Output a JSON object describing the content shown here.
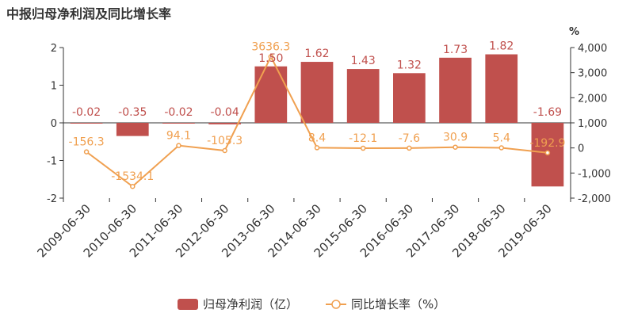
{
  "chart_data": {
    "type": "bar",
    "title": "中报归母净利润及同比增长率",
    "categories": [
      "2009-06-30",
      "2010-06-30",
      "2011-06-30",
      "2012-06-30",
      "2013-06-30",
      "2014-06-30",
      "2015-06-30",
      "2016-06-30",
      "2017-06-30",
      "2018-06-30",
      "2019-06-30"
    ],
    "series": [
      {
        "name": "归母净利润（亿）",
        "type": "bar",
        "axis": "left",
        "values": [
          -0.02,
          -0.35,
          -0.02,
          -0.04,
          1.5,
          1.62,
          1.43,
          1.32,
          1.73,
          1.82,
          -1.69
        ],
        "labels": [
          "-0.02",
          "-0.35",
          "-0.02",
          "-0.04",
          "1.50",
          "1.62",
          "1.43",
          "1.32",
          "1.73",
          "1.82",
          "-1.69"
        ],
        "color": "#c0504d"
      },
      {
        "name": "同比增长率（%）",
        "type": "line",
        "axis": "right",
        "values": [
          -156.3,
          -1534.1,
          94.1,
          -105.3,
          3636.3,
          8.4,
          -12.1,
          -7.6,
          30.9,
          5.4,
          -192.9
        ],
        "labels": [
          "-156.3",
          "-1534.1",
          "94.1",
          "-105.3",
          "3636.3",
          "8.4",
          "-12.1",
          "-7.6",
          "30.9",
          "5.4",
          "-192.9"
        ],
        "color": "#f0a050"
      }
    ],
    "y_left": {
      "min": -2,
      "max": 2,
      "ticks": [
        -2,
        -1,
        0,
        1,
        2
      ],
      "tick_labels": [
        "-2",
        "-1",
        "0",
        "1",
        "2"
      ]
    },
    "y_right": {
      "min": -2000,
      "max": 4000,
      "ticks": [
        -2000,
        -1000,
        0,
        1000,
        2000,
        3000,
        4000
      ],
      "tick_labels": [
        "-2,000",
        "-1,000",
        "0",
        "1,000",
        "2,000",
        "3,000",
        "4,000"
      ],
      "unit_label": "%"
    },
    "legend": {
      "position": "bottom-center"
    },
    "grid": false
  }
}
